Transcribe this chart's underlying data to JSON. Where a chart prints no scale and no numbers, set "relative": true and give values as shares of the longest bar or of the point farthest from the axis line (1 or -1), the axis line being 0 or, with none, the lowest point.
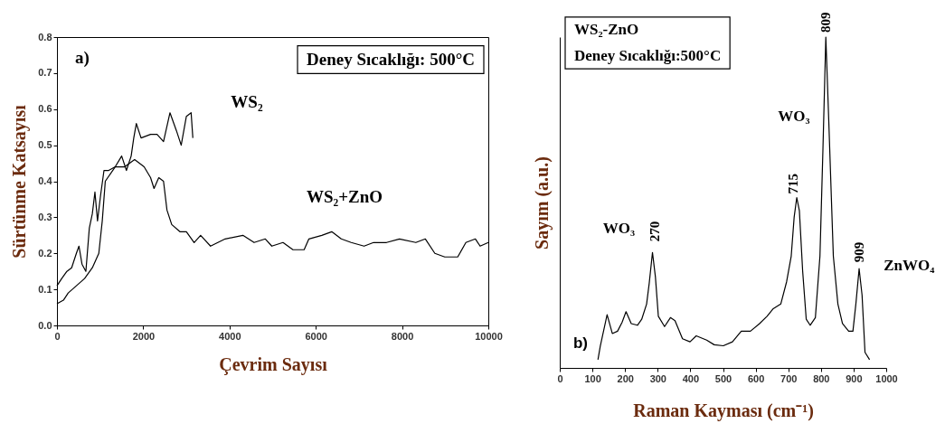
{
  "chart_data": [
    {
      "type": "line",
      "xlabel": "Çevrim Sayısı",
      "ylabel": "Sürtünme Katsayısı",
      "xlim": [
        0,
        10000
      ],
      "xticks": [
        0,
        2000,
        4000,
        6000,
        8000,
        10000
      ],
      "ylim": [
        0,
        0.8
      ],
      "yticks": [
        {
          "value": 0,
          "label": "0.0"
        },
        0.1,
        0.2,
        0.3,
        0.4,
        0.5,
        0.6,
        0.7,
        0.8
      ],
      "grid": false,
      "series": [
        {
          "color": "#000000",
          "x": [
            0,
            110,
            230,
            340,
            450,
            510,
            580,
            670,
            750,
            820,
            880,
            940,
            1010,
            1090,
            1200,
            1350,
            1500,
            1610,
            1720,
            1780,
            1840,
            1950,
            2170,
            2320,
            2470,
            2620,
            2770,
            2880,
            3000,
            3110,
            3150
          ],
          "values": [
            0.11,
            0.13,
            0.15,
            0.16,
            0.2,
            0.22,
            0.17,
            0.15,
            0.27,
            0.31,
            0.37,
            0.29,
            0.36,
            0.43,
            0.43,
            0.44,
            0.47,
            0.43,
            0.47,
            0.52,
            0.56,
            0.52,
            0.53,
            0.53,
            0.51,
            0.59,
            0.54,
            0.5,
            0.58,
            0.59,
            0.52
          ]
        },
        {
          "color": "#000000",
          "x": [
            0,
            150,
            260,
            450,
            640,
            820,
            970,
            1050,
            1120,
            1350,
            1570,
            1800,
            2020,
            2170,
            2250,
            2360,
            2470,
            2550,
            2660,
            2850,
            3000,
            3180,
            3330,
            3560,
            3900,
            4310,
            4570,
            4830,
            4980,
            5240,
            5470,
            5730,
            5840,
            6140,
            6370,
            6590,
            6820,
            7120,
            7340,
            7640,
            7940,
            8320,
            8540,
            8760,
            8990,
            9290,
            9480,
            9700,
            9810,
            10000
          ],
          "values": [
            0.06,
            0.07,
            0.09,
            0.11,
            0.13,
            0.16,
            0.2,
            0.29,
            0.4,
            0.44,
            0.44,
            0.46,
            0.44,
            0.41,
            0.38,
            0.41,
            0.4,
            0.32,
            0.28,
            0.26,
            0.26,
            0.23,
            0.25,
            0.22,
            0.24,
            0.25,
            0.23,
            0.24,
            0.22,
            0.23,
            0.21,
            0.21,
            0.24,
            0.25,
            0.26,
            0.24,
            0.23,
            0.22,
            0.23,
            0.23,
            0.24,
            0.23,
            0.24,
            0.2,
            0.19,
            0.19,
            0.23,
            0.24,
            0.22,
            0.23
          ]
        }
      ],
      "annotations": [
        "a)",
        "Deney Sıcaklığı: 500°C",
        {
          "text": "WS₂",
          "x": 3110,
          "y": 0.59
        },
        {
          "text": "WS₂+ZnO",
          "x": 6330,
          "y": 0.26
        }
      ]
    },
    {
      "type": "line",
      "relative": true,
      "xlabel": "Raman Kayması (cm⁻¹)",
      "ylabel": "Sayım (a.u.)",
      "xlim": [
        0,
        1000
      ],
      "xticks": [
        0,
        100,
        200,
        300,
        400,
        500,
        600,
        700,
        800,
        900,
        1000
      ],
      "series": [
        {
          "color": "#000000",
          "x": [
            117,
            124,
            145,
            161,
            177,
            191,
            203,
            219,
            238,
            251,
            266,
            274,
            284,
            293,
            302,
            321,
            339,
            353,
            376,
            399,
            418,
            450,
            473,
            501,
            529,
            556,
            584,
            612,
            635,
            654,
            677,
            695,
            709,
            718,
            726,
            734,
            744,
            755,
            767,
            783,
            797,
            806,
            815,
            824,
            838,
            852,
            866,
            885,
            898,
            907,
            917,
            926,
            935,
            949
          ],
          "values": [
            0.025,
            0.065,
            0.161,
            0.104,
            0.111,
            0.138,
            0.17,
            0.134,
            0.129,
            0.147,
            0.193,
            0.256,
            0.349,
            0.275,
            0.156,
            0.125,
            0.152,
            0.143,
            0.088,
            0.079,
            0.097,
            0.084,
            0.07,
            0.067,
            0.079,
            0.111,
            0.111,
            0.134,
            0.156,
            0.179,
            0.193,
            0.261,
            0.338,
            0.456,
            0.515,
            0.475,
            0.293,
            0.147,
            0.129,
            0.152,
            0.338,
            0.656,
            1,
            0.747,
            0.338,
            0.193,
            0.134,
            0.111,
            0.111,
            0.193,
            0.3,
            0.22,
            0.047,
            0.025
          ]
        }
      ],
      "annotations": [
        "WS₂-ZnO",
        "Deney Sıcaklığı:500°C",
        "b)",
        {
          "text": "WO₃",
          "x": 284,
          "y": 0.349
        },
        {
          "text": "270",
          "x": 284,
          "y": 0.349
        },
        {
          "text": "715",
          "x": 726,
          "y": 0.515
        },
        {
          "text": "WO₃",
          "x": 806,
          "y": 0.656
        },
        {
          "text": "809",
          "x": 815,
          "y": 1
        },
        {
          "text": "909",
          "x": 917,
          "y": 0.3
        },
        {
          "text": "ZnWO₄",
          "x": 926,
          "y": 0.22
        }
      ]
    }
  ]
}
